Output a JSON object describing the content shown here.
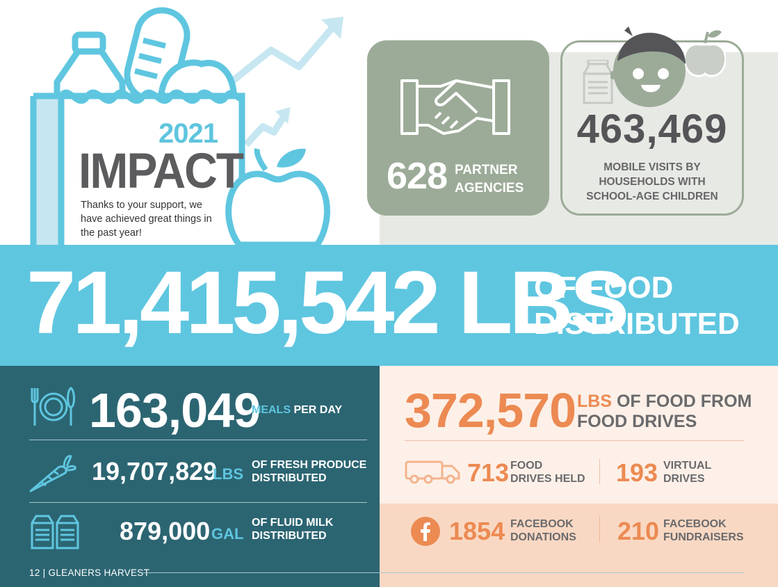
{
  "hero": {
    "year": "2021",
    "title": "IMPACT",
    "tagline": "Thanks to your support, we have achieved great things in the past year!"
  },
  "partners": {
    "number": "628",
    "label_line1": "PARTNER",
    "label_line2": "AGENCIES"
  },
  "mobile": {
    "number": "463,469",
    "label_line1": "MOBILE VISITS BY",
    "label_line2": "HOUSEHOLDS WITH",
    "label_line3": "SCHOOL-AGE CHILDREN"
  },
  "food_distributed": {
    "number": "71,415,542 LBS",
    "label_line1": "OF FOOD",
    "label_line2": "DISTRIBUTED"
  },
  "meals": {
    "number": "163,049",
    "label_highlight": "MEALS",
    "label_rest": " PER DAY"
  },
  "produce": {
    "number": "19,707,829",
    "unit": "LBS",
    "label_line1": "OF  FRESH PRODUCE",
    "label_line2": "DISTRIBUTED"
  },
  "milk": {
    "number": "879,000",
    "unit": "GAL",
    "label_line1": "OF FLUID MILK",
    "label_line2": "DISTRIBUTED"
  },
  "food_drives": {
    "number": "372,570",
    "label_highlight": "LBS",
    "label_rest": " OF FOOD FROM",
    "label_line2": "FOOD DRIVES"
  },
  "drives_held": {
    "number": "713",
    "label_line1": "FOOD",
    "label_line2": "DRIVES HELD"
  },
  "virtual_drives": {
    "number": "193",
    "label_line1": "VIRTUAL",
    "label_line2": "DRIVES"
  },
  "facebook_donations": {
    "number": "1854",
    "label_line1": "FACEBOOK",
    "label_line2": "DONATIONS"
  },
  "facebook_fundraisers": {
    "number": "210",
    "label_line1": "FACEBOOK",
    "label_line2": "FUNDRAISERS"
  },
  "footer": {
    "text": "12 | GLEANERS HARVEST"
  },
  "icons": [
    "grocery-bag-icon",
    "trend-arrow-icon",
    "apple-icon",
    "handshake-icon",
    "child-face-icon",
    "milk-carton-icon",
    "plate-utensils-icon",
    "carrot-icon",
    "truck-icon",
    "facebook-icon"
  ],
  "colors": {
    "blue": "#5fc6e0",
    "teal": "#2c6572",
    "sage": "#9cab98",
    "orange": "#ec8a52",
    "peach": "#fdf0e8",
    "grey_text": "#5c5c5e"
  }
}
